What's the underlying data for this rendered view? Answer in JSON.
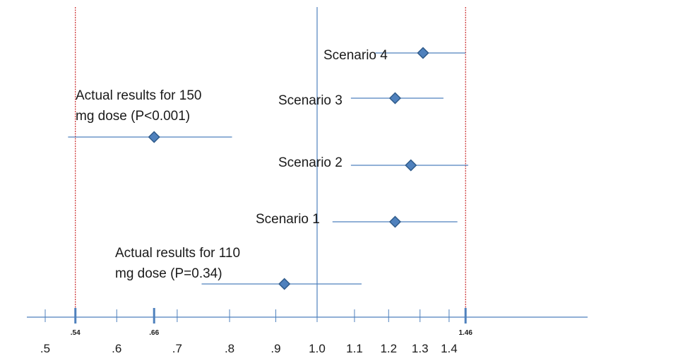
{
  "chart_data": {
    "type": "forest",
    "title": "",
    "xlabel": "",
    "ylabel": "",
    "x_scale": "log",
    "x_ticks": [
      0.5,
      0.6,
      0.7,
      0.8,
      0.9,
      1.0,
      1.1,
      1.2,
      1.3,
      1.4
    ],
    "x_tick_labels": [
      ".5",
      ".6",
      ".7",
      ".8",
      ".9",
      "1.0",
      "1.1",
      "1.2",
      "1.3",
      "1.4"
    ],
    "reference_line": 1.0,
    "margin_lines": [
      {
        "value": 0.54,
        "label": ".54"
      },
      {
        "value": 1.46,
        "label": "1.46"
      }
    ],
    "highlight_ticks": [
      {
        "value": 0.54,
        "label": ".54"
      },
      {
        "value": 0.66,
        "label": ".66"
      },
      {
        "value": 1.46,
        "label": "1.46"
      }
    ],
    "series": [
      {
        "label": "Scenario 4",
        "estimate": 1.31,
        "lower": 1.16,
        "upper": 1.46
      },
      {
        "label": "Scenario 3",
        "estimate": 1.22,
        "lower": 1.09,
        "upper": 1.38
      },
      {
        "label": "Actual results for 150 mg dose (P<0.001)",
        "label_lines": [
          "Actual results for 150",
          "mg dose (P<0.001)"
        ],
        "estimate": 0.66,
        "lower": 0.53,
        "upper": 0.805
      },
      {
        "label": "Scenario 2",
        "estimate": 1.27,
        "lower": 1.09,
        "upper": 1.47
      },
      {
        "label": "Scenario 1",
        "estimate": 1.22,
        "lower": 1.04,
        "upper": 1.43
      },
      {
        "label": "Actual results for 110 mg dose (P=0.34)",
        "label_lines": [
          "Actual results for 110",
          "mg dose (P=0.34)"
        ],
        "estimate": 0.92,
        "lower": 0.745,
        "upper": 1.12
      }
    ]
  }
}
